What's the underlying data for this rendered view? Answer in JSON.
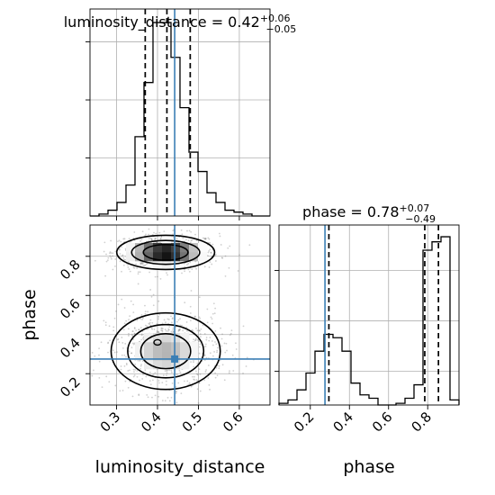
{
  "chart_data": {
    "type": "corner",
    "parameters": [
      "luminosity_distance",
      "phase"
    ],
    "truth": {
      "luminosity_distance": 0.442,
      "phase": 0.275
    },
    "colors": {
      "histogram": "#000000",
      "quantile": "#000000",
      "truth": "#3b7fb5",
      "grid": "#b0b0b0",
      "points": "#777777"
    },
    "grid": true,
    "panels": {
      "luminosity_distance_hist": {
        "title_param": "luminosity_distance",
        "title_value": "0.42",
        "title_plus": "+0.06",
        "title_minus": "−0.05",
        "xlim": [
          0.235,
          0.675
        ],
        "ylim": [
          0,
          1.07
        ],
        "quantiles": [
          0.37,
          0.423,
          0.48
        ],
        "edges": [
          0.235,
          0.257,
          0.279,
          0.301,
          0.323,
          0.345,
          0.367,
          0.389,
          0.411,
          0.433,
          0.455,
          0.477,
          0.499,
          0.521,
          0.543,
          0.565,
          0.587,
          0.609,
          0.631,
          0.653,
          0.675
        ],
        "counts": [
          0.0,
          0.01,
          0.03,
          0.07,
          0.16,
          0.41,
          0.69,
          1.0,
          1.0,
          0.82,
          0.56,
          0.33,
          0.23,
          0.12,
          0.07,
          0.03,
          0.02,
          0.01,
          0.0,
          0.0
        ]
      },
      "phase_hist": {
        "title_param": "phase",
        "title_value": "0.78",
        "title_plus": "+0.07",
        "title_minus": "−0.49",
        "xlim": [
          0.04,
          0.96
        ],
        "ylim": [
          0,
          1.07
        ],
        "quantiles": [
          0.295,
          0.785,
          0.855
        ],
        "edges": [
          0.04,
          0.086,
          0.132,
          0.178,
          0.224,
          0.27,
          0.316,
          0.362,
          0.408,
          0.454,
          0.5,
          0.546,
          0.592,
          0.638,
          0.684,
          0.73,
          0.776,
          0.822,
          0.868,
          0.914,
          0.96
        ],
        "counts": [
          0.01,
          0.03,
          0.09,
          0.19,
          0.32,
          0.42,
          0.4,
          0.32,
          0.13,
          0.06,
          0.04,
          0.0,
          0.0,
          0.01,
          0.04,
          0.12,
          0.92,
          0.97,
          1.0,
          0.03
        ]
      },
      "joint": {
        "xlim": [
          0.235,
          0.675
        ],
        "ylim": [
          0.04,
          0.96
        ],
        "clusters": [
          {
            "cx": 0.42,
            "cy": 0.82,
            "sx": 0.052,
            "sy": 0.038,
            "weight": 0.5
          },
          {
            "cx": 0.42,
            "cy": 0.315,
            "sx": 0.058,
            "sy": 0.085,
            "weight": 0.5
          }
        ]
      }
    },
    "ticks": {
      "luminosity_distance": [
        "0.3",
        "0.4",
        "0.5",
        "0.6"
      ],
      "phase": [
        "0.2",
        "0.4",
        "0.6",
        "0.8"
      ]
    },
    "axis_labels": {
      "x_bottom_left": "luminosity_distance",
      "x_bottom_right": "phase",
      "y_left": "phase"
    }
  }
}
